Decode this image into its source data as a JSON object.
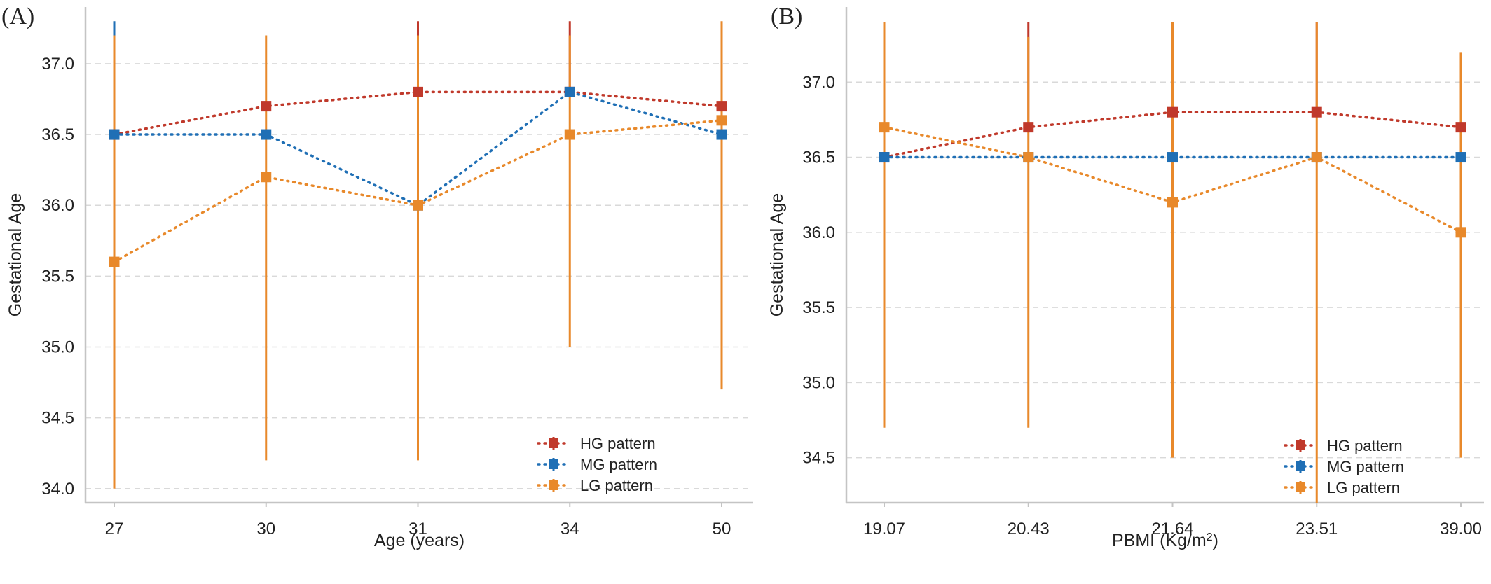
{
  "chart_data": [
    {
      "type": "line",
      "panel_label": "(A)",
      "xlabel": "Age (years)",
      "ylabel": "Gestational Age",
      "categories": [
        "27",
        "30",
        "31",
        "34",
        "50"
      ],
      "ylim": [
        33.9,
        37.4
      ],
      "yticks": [
        34.0,
        34.5,
        35.0,
        35.5,
        36.0,
        36.5,
        37.0
      ],
      "grid": true,
      "legend_position": "bottom-right",
      "series": [
        {
          "name": "HG pattern",
          "color": "#c0392b",
          "values": [
            36.5,
            36.7,
            36.8,
            36.8,
            36.7
          ],
          "error_low": [
            null,
            null,
            null,
            null,
            null
          ],
          "error_high": [
            null,
            null,
            37.3,
            37.3,
            null
          ]
        },
        {
          "name": "MG pattern",
          "color": "#1f6fb5",
          "values": [
            36.5,
            36.5,
            36.0,
            36.8,
            36.5
          ],
          "error_low": [
            null,
            null,
            null,
            null,
            null
          ],
          "error_high": [
            37.3,
            null,
            null,
            null,
            null
          ]
        },
        {
          "name": "LG pattern",
          "color": "#e8892b",
          "values": [
            35.6,
            36.2,
            36.0,
            36.5,
            36.6
          ],
          "error_low": [
            34.0,
            34.2,
            34.2,
            35.0,
            34.7
          ],
          "error_high": [
            37.2,
            37.2,
            37.2,
            37.2,
            37.3
          ]
        }
      ]
    },
    {
      "type": "line",
      "panel_label": "(B)",
      "xlabel": "PBMI  (Kg/m",
      "xlabel_sup": "2",
      "xlabel_tail": ")",
      "ylabel": "Gestational Age",
      "categories": [
        "19.07",
        "20.43",
        "21.64",
        "23.51",
        "39.00"
      ],
      "ylim": [
        34.2,
        37.5
      ],
      "yticks": [
        34.5,
        35.0,
        35.5,
        36.0,
        36.5,
        37.0
      ],
      "grid": true,
      "legend_position": "bottom-right",
      "series": [
        {
          "name": "HG pattern",
          "color": "#c0392b",
          "values": [
            36.5,
            36.7,
            36.8,
            36.8,
            36.7
          ],
          "error_low": [
            null,
            null,
            null,
            null,
            null
          ],
          "error_high": [
            null,
            37.4,
            37.4,
            37.4,
            null
          ]
        },
        {
          "name": "MG pattern",
          "color": "#1f6fb5",
          "values": [
            36.5,
            36.5,
            36.5,
            36.5,
            36.5
          ],
          "error_low": [
            null,
            null,
            null,
            null,
            null
          ],
          "error_high": [
            null,
            null,
            null,
            null,
            null
          ]
        },
        {
          "name": "LG pattern",
          "color": "#e8892b",
          "values": [
            36.7,
            36.5,
            36.2,
            36.5,
            36.0
          ],
          "error_low": [
            34.7,
            34.7,
            34.5,
            34.2,
            34.5
          ],
          "error_high": [
            37.4,
            37.3,
            37.4,
            37.4,
            37.2
          ]
        }
      ]
    }
  ]
}
